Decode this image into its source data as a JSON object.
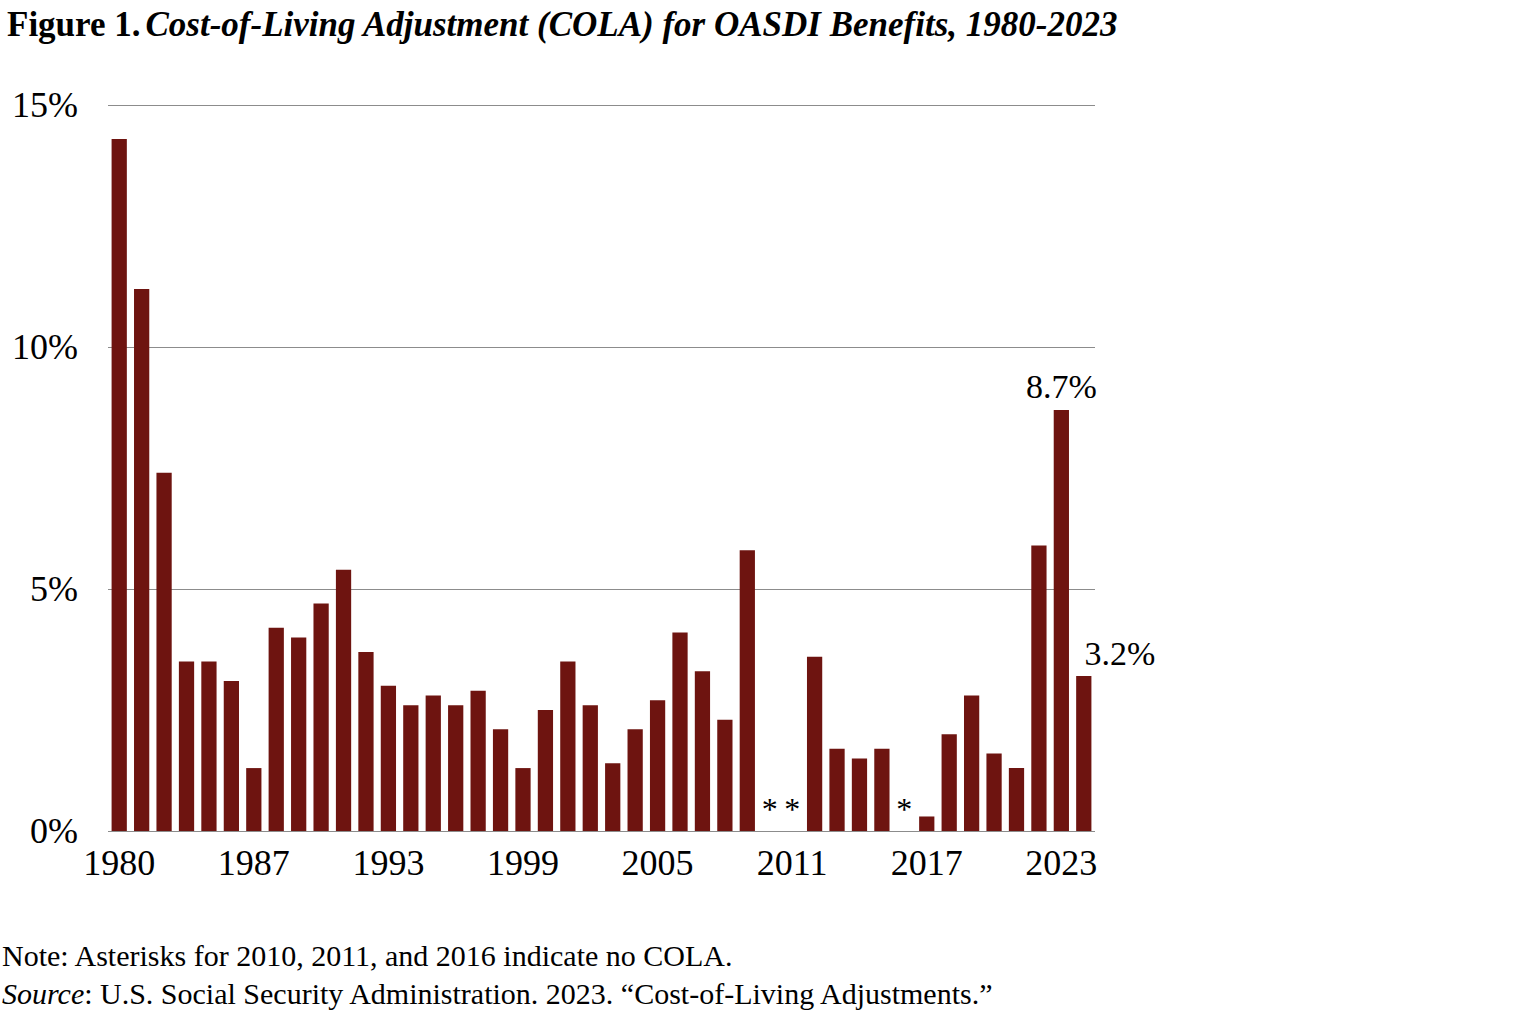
{
  "chart_data": {
    "type": "bar",
    "figure_label": "Figure 1.",
    "title": "Cost-of-Living Adjustment (COLA) for OASDI Benefits, 1980-2023",
    "categories": [
      "1980",
      null,
      null,
      null,
      null,
      null,
      "1987",
      null,
      null,
      null,
      null,
      null,
      "1993",
      null,
      null,
      null,
      null,
      null,
      "1999",
      null,
      null,
      null,
      null,
      null,
      "2005",
      null,
      null,
      null,
      null,
      null,
      "2011",
      null,
      null,
      null,
      null,
      null,
      "2017",
      null,
      null,
      null,
      null,
      null,
      "2023",
      null
    ],
    "values": [
      14.3,
      11.2,
      7.4,
      3.5,
      3.5,
      3.1,
      1.3,
      4.2,
      4.0,
      4.7,
      5.4,
      3.7,
      3.0,
      2.6,
      2.8,
      2.6,
      2.9,
      2.1,
      1.3,
      2.5,
      3.5,
      2.6,
      1.4,
      2.1,
      2.7,
      4.1,
      3.3,
      2.3,
      5.8,
      0,
      0,
      3.6,
      1.7,
      1.5,
      1.7,
      0,
      0.3,
      2.0,
      2.8,
      1.6,
      1.3,
      5.9,
      8.7,
      3.2
    ],
    "color": "#6e1410",
    "ylim": [
      0,
      15
    ],
    "yticks": [
      {
        "value": 0,
        "label": "0%"
      },
      {
        "value": 5,
        "label": "5%"
      },
      {
        "value": 10,
        "label": "10%"
      },
      {
        "value": 15,
        "label": "15%"
      }
    ],
    "grid": true,
    "annotations": [
      {
        "position": 29,
        "value": 0,
        "text": "*"
      },
      {
        "position": 30,
        "value": 0,
        "text": "*"
      },
      {
        "position": 35,
        "value": 0,
        "text": "*"
      },
      {
        "position": 42,
        "value": 8.7,
        "text": "8.7%"
      },
      {
        "position": 43,
        "value": 3.2,
        "text": "3.2%"
      }
    ],
    "note": "Note: Asterisks for 2010, 2011, and 2016 indicate no COLA.",
    "source_label": "Source",
    "source": ": U.S. Social Security Administration. 2023. “Cost-of-Living Adjustments.”"
  }
}
